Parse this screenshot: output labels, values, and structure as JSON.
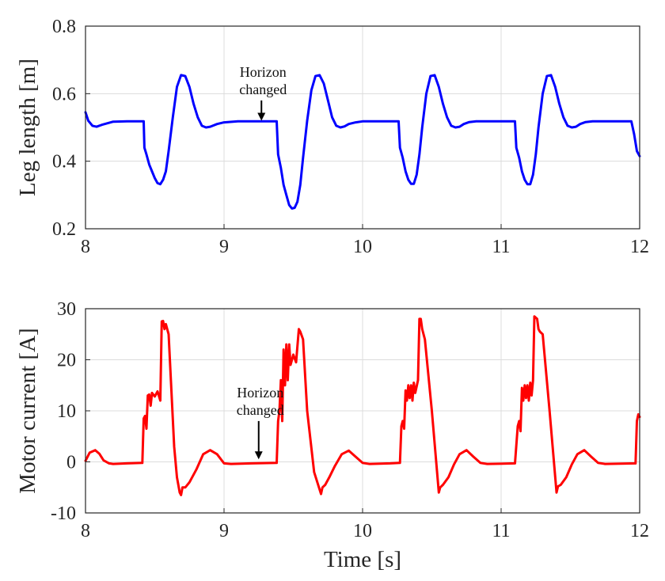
{
  "chart_data": [
    {
      "type": "line",
      "ylabel": "Leg length [m]",
      "xlabel": "",
      "xlim": [
        8,
        12
      ],
      "ylim": [
        0.2,
        0.8
      ],
      "x_ticks": [
        "8",
        "9",
        "10",
        "11",
        "12"
      ],
      "y_ticks": [
        "0.2",
        "0.4",
        "0.6",
        "0.8"
      ],
      "grid": true,
      "annotation": {
        "line1": "Horizon",
        "line2": "changed",
        "arrow_x": 9.27,
        "arrow_y_tip": 0.52,
        "arrow_y_tail": 0.58
      },
      "series": [
        {
          "name": "Leg length",
          "color": "#0000ff",
          "x": [
            8.0,
            8.02,
            8.05,
            8.08,
            8.12,
            8.2,
            8.3,
            8.42,
            8.425,
            8.44,
            8.46,
            8.48,
            8.5,
            8.52,
            8.54,
            8.56,
            8.58,
            8.6,
            8.63,
            8.66,
            8.69,
            8.72,
            8.75,
            8.78,
            8.81,
            8.84,
            8.87,
            8.9,
            8.95,
            9.0,
            9.1,
            9.2,
            9.3,
            9.38,
            9.39,
            9.41,
            9.43,
            9.45,
            9.47,
            9.49,
            9.51,
            9.53,
            9.55,
            9.57,
            9.6,
            9.63,
            9.66,
            9.69,
            9.72,
            9.75,
            9.78,
            9.81,
            9.84,
            9.87,
            9.9,
            9.95,
            10.0,
            10.1,
            10.2,
            10.26,
            10.27,
            10.29,
            10.31,
            10.33,
            10.35,
            10.37,
            10.39,
            10.41,
            10.43,
            10.46,
            10.49,
            10.52,
            10.55,
            10.58,
            10.61,
            10.64,
            10.67,
            10.7,
            10.73,
            10.77,
            10.82,
            10.9,
            11.0,
            11.1,
            11.11,
            11.13,
            11.15,
            11.17,
            11.19,
            11.21,
            11.23,
            11.25,
            11.27,
            11.3,
            11.33,
            11.36,
            11.39,
            11.42,
            11.45,
            11.48,
            11.51,
            11.54,
            11.57,
            11.61,
            11.66,
            11.75,
            11.85,
            11.94,
            11.96,
            11.98,
            12.0
          ],
          "y": [
            0.545,
            0.52,
            0.505,
            0.502,
            0.508,
            0.517,
            0.518,
            0.518,
            0.44,
            0.42,
            0.39,
            0.37,
            0.35,
            0.335,
            0.332,
            0.345,
            0.37,
            0.43,
            0.53,
            0.62,
            0.655,
            0.652,
            0.62,
            0.57,
            0.53,
            0.505,
            0.5,
            0.502,
            0.51,
            0.515,
            0.518,
            0.518,
            0.518,
            0.518,
            0.42,
            0.38,
            0.33,
            0.3,
            0.27,
            0.26,
            0.262,
            0.28,
            0.33,
            0.41,
            0.52,
            0.61,
            0.652,
            0.655,
            0.63,
            0.58,
            0.53,
            0.505,
            0.5,
            0.503,
            0.51,
            0.515,
            0.518,
            0.518,
            0.518,
            0.518,
            0.44,
            0.41,
            0.37,
            0.345,
            0.333,
            0.333,
            0.36,
            0.42,
            0.5,
            0.6,
            0.652,
            0.655,
            0.62,
            0.57,
            0.53,
            0.505,
            0.5,
            0.502,
            0.51,
            0.516,
            0.518,
            0.518,
            0.518,
            0.518,
            0.44,
            0.41,
            0.37,
            0.345,
            0.332,
            0.332,
            0.36,
            0.42,
            0.5,
            0.6,
            0.652,
            0.655,
            0.62,
            0.57,
            0.53,
            0.505,
            0.5,
            0.502,
            0.51,
            0.516,
            0.518,
            0.518,
            0.518,
            0.518,
            0.48,
            0.43,
            0.415
          ]
        }
      ]
    },
    {
      "type": "line",
      "ylabel": "Motor current [A]",
      "xlabel": "Time [s]",
      "xlim": [
        8,
        12
      ],
      "ylim": [
        -10,
        30
      ],
      "x_ticks": [
        "8",
        "9",
        "10",
        "11",
        "12"
      ],
      "y_ticks": [
        "-10",
        "0",
        "10",
        "20",
        "30"
      ],
      "grid": true,
      "annotation": {
        "line1": "Horizon",
        "line2": "changed",
        "arrow_x": 9.25,
        "arrow_y_tip": 0.5,
        "arrow_y_tail": 8.0
      },
      "series": [
        {
          "name": "Motor current",
          "color": "#ff0000",
          "x": [
            8.0,
            8.03,
            8.07,
            8.1,
            8.13,
            8.17,
            8.2,
            8.3,
            8.41,
            8.42,
            8.43,
            8.44,
            8.45,
            8.46,
            8.47,
            8.48,
            8.5,
            8.52,
            8.54,
            8.55,
            8.56,
            8.57,
            8.58,
            8.6,
            8.62,
            8.64,
            8.66,
            8.68,
            8.69,
            8.7,
            8.72,
            8.75,
            8.8,
            8.85,
            8.9,
            8.95,
            9.0,
            9.05,
            9.2,
            9.38,
            9.39,
            9.4,
            9.41,
            9.42,
            9.43,
            9.44,
            9.45,
            9.46,
            9.47,
            9.48,
            9.49,
            9.5,
            9.52,
            9.54,
            9.55,
            9.57,
            9.6,
            9.65,
            9.7,
            9.71,
            9.73,
            9.76,
            9.8,
            9.85,
            9.9,
            9.95,
            10.0,
            10.05,
            10.2,
            10.27,
            10.28,
            10.29,
            10.3,
            10.31,
            10.32,
            10.33,
            10.34,
            10.35,
            10.36,
            10.37,
            10.38,
            10.4,
            10.41,
            10.42,
            10.43,
            10.45,
            10.5,
            10.55,
            10.56,
            10.58,
            10.62,
            10.66,
            10.7,
            10.75,
            10.8,
            10.85,
            10.9,
            11.1,
            11.12,
            11.13,
            11.14,
            11.15,
            11.16,
            11.17,
            11.18,
            11.19,
            11.2,
            11.21,
            11.22,
            11.23,
            11.24,
            11.26,
            11.27,
            11.28,
            11.3,
            11.35,
            11.4,
            11.41,
            11.43,
            11.47,
            11.51,
            11.55,
            11.6,
            11.65,
            11.7,
            11.75,
            11.97,
            11.98,
            11.99,
            12.0
          ],
          "y": [
            0.2,
            1.8,
            2.3,
            1.6,
            0.3,
            -0.3,
            -0.4,
            -0.3,
            -0.2,
            8.5,
            9.0,
            6.5,
            13.0,
            13.2,
            11.0,
            13.5,
            12.8,
            13.8,
            12.0,
            27.5,
            27.6,
            26.0,
            27.0,
            25.0,
            14.0,
            3.0,
            -3.0,
            -6.0,
            -6.5,
            -5.0,
            -5.0,
            -4.0,
            -1.5,
            1.5,
            2.3,
            1.5,
            -0.3,
            -0.4,
            -0.3,
            -0.2,
            8.0,
            10.0,
            16.0,
            8.0,
            22.0,
            15.0,
            23.0,
            16.0,
            23.0,
            19.0,
            20.0,
            21.0,
            19.5,
            26.0,
            25.5,
            24.0,
            10.0,
            -2.0,
            -6.3,
            -5.0,
            -4.5,
            -3.0,
            -0.8,
            1.5,
            2.2,
            1.0,
            -0.2,
            -0.4,
            -0.3,
            -0.2,
            7.0,
            8.0,
            6.5,
            14.0,
            12.0,
            15.0,
            12.5,
            15.0,
            12.0,
            15.5,
            13.5,
            16.0,
            28.0,
            28.0,
            26.0,
            24.0,
            10.0,
            -6.0,
            -5.0,
            -4.5,
            -3.0,
            -0.5,
            1.5,
            2.3,
            1.0,
            -0.2,
            -0.4,
            -0.3,
            7.0,
            8.0,
            6.0,
            14.5,
            12.0,
            15.0,
            12.5,
            15.0,
            12.0,
            15.5,
            13.0,
            16.0,
            28.5,
            28.0,
            26.0,
            25.5,
            25.0,
            10.0,
            -6.0,
            -4.8,
            -4.5,
            -3.0,
            -0.5,
            1.5,
            2.3,
            1.0,
            -0.2,
            -0.4,
            -0.3,
            8.0,
            9.3,
            8.8
          ]
        }
      ]
    }
  ]
}
